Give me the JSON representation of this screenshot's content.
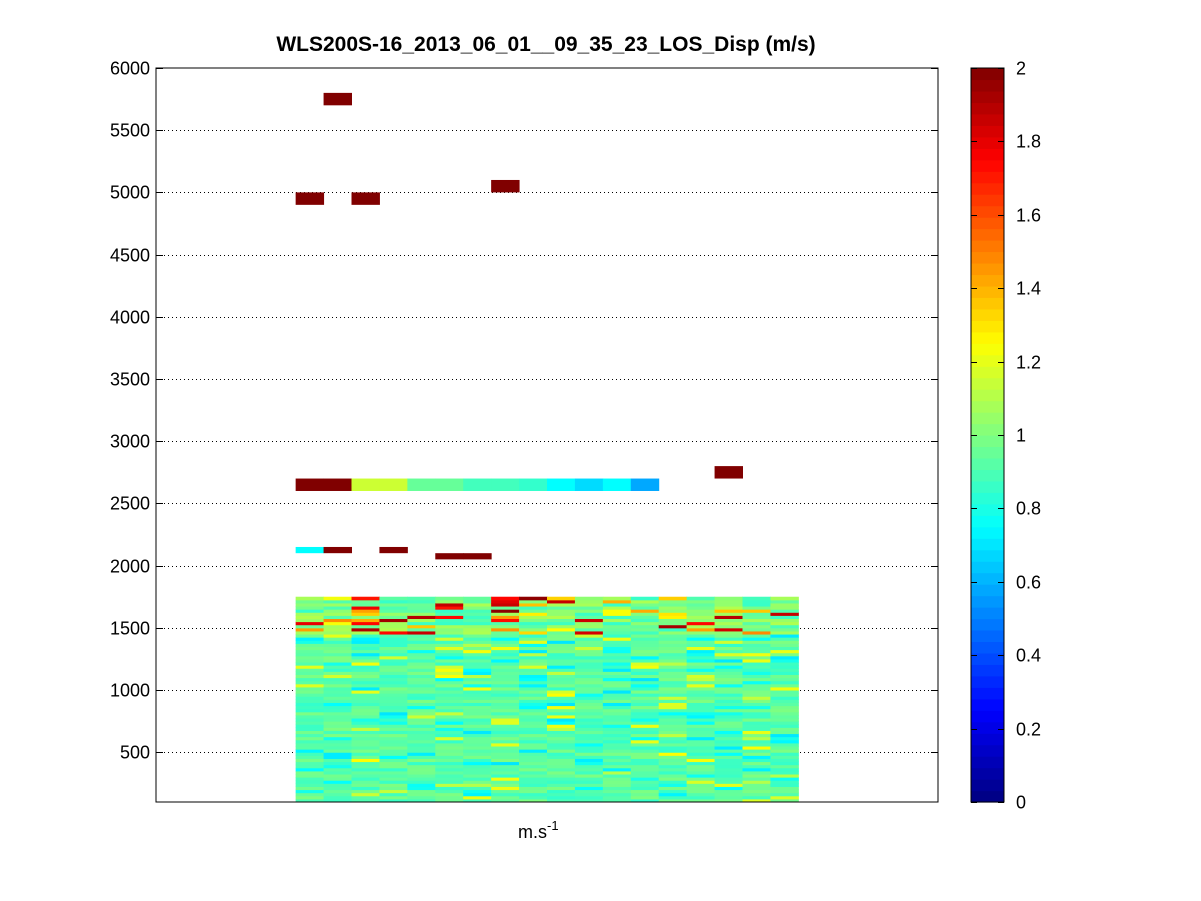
{
  "chart_data": {
    "type": "heatmap",
    "title": "WLS200S-16_2013_06_01__09_35_23_LOS_Disp (m/s)",
    "xlabel": "m.s",
    "xlabel_superscript": "-1",
    "ylabel": "",
    "xlim": [
      0,
      14
    ],
    "ylim": [
      100,
      6000
    ],
    "yticks": [
      500,
      1000,
      1500,
      2000,
      2500,
      3000,
      3500,
      4000,
      4500,
      5000,
      5500,
      6000
    ],
    "grid": "horizontal dotted",
    "colormap": "jet",
    "colorbar": {
      "range": [
        0,
        2
      ],
      "ticks": [
        "0",
        "0.2",
        "0.4",
        "0.6",
        "0.8",
        "1",
        "1.2",
        "1.4",
        "1.6",
        "1.8",
        "2"
      ],
      "placement": "right"
    },
    "columns": 18,
    "column_start": 2.5,
    "column_width": 0.5,
    "bin_height": 100,
    "dense_region": {
      "y_range": [
        100,
        1750
      ],
      "bin_height": 25,
      "typical_value": 0.9,
      "description": "mostly 0.8-1.0 values with scattered high values (up to 2) between 1450 and 1750"
    },
    "sparse_cells": [
      {
        "col": 1,
        "y": 5750,
        "value": 2.0
      },
      {
        "col": 0,
        "y": 4950,
        "value": 2.0
      },
      {
        "col": 2,
        "y": 4950,
        "value": 2.0
      },
      {
        "col": 7,
        "y": 5050,
        "value": 2.0
      },
      {
        "col": 15,
        "y": 2750,
        "value": 2.0
      },
      {
        "col": 0,
        "y": 2650,
        "value": 2.0
      },
      {
        "col": 1,
        "y": 2650,
        "value": 2.0
      },
      {
        "col": 2,
        "y": 2650,
        "value": 1.15
      },
      {
        "col": 3,
        "y": 2650,
        "value": 1.15
      },
      {
        "col": 4,
        "y": 2650,
        "value": 0.95
      },
      {
        "col": 5,
        "y": 2650,
        "value": 0.95
      },
      {
        "col": 6,
        "y": 2650,
        "value": 0.88
      },
      {
        "col": 7,
        "y": 2650,
        "value": 0.88
      },
      {
        "col": 8,
        "y": 2650,
        "value": 0.85
      },
      {
        "col": 9,
        "y": 2650,
        "value": 0.75
      },
      {
        "col": 10,
        "y": 2650,
        "value": 0.68
      },
      {
        "col": 11,
        "y": 2650,
        "value": 0.75
      },
      {
        "col": 12,
        "y": 2650,
        "value": 0.58
      },
      {
        "col": 0,
        "y": 2125,
        "value": 0.75,
        "h": 50
      },
      {
        "col": 1,
        "y": 2125,
        "value": 2.0,
        "h": 50
      },
      {
        "col": 3,
        "y": 2125,
        "value": 2.0,
        "h": 50
      },
      {
        "col": 5,
        "y": 2075,
        "value": 2.0,
        "h": 50
      },
      {
        "col": 6,
        "y": 2075,
        "value": 2.0,
        "h": 50
      }
    ]
  }
}
